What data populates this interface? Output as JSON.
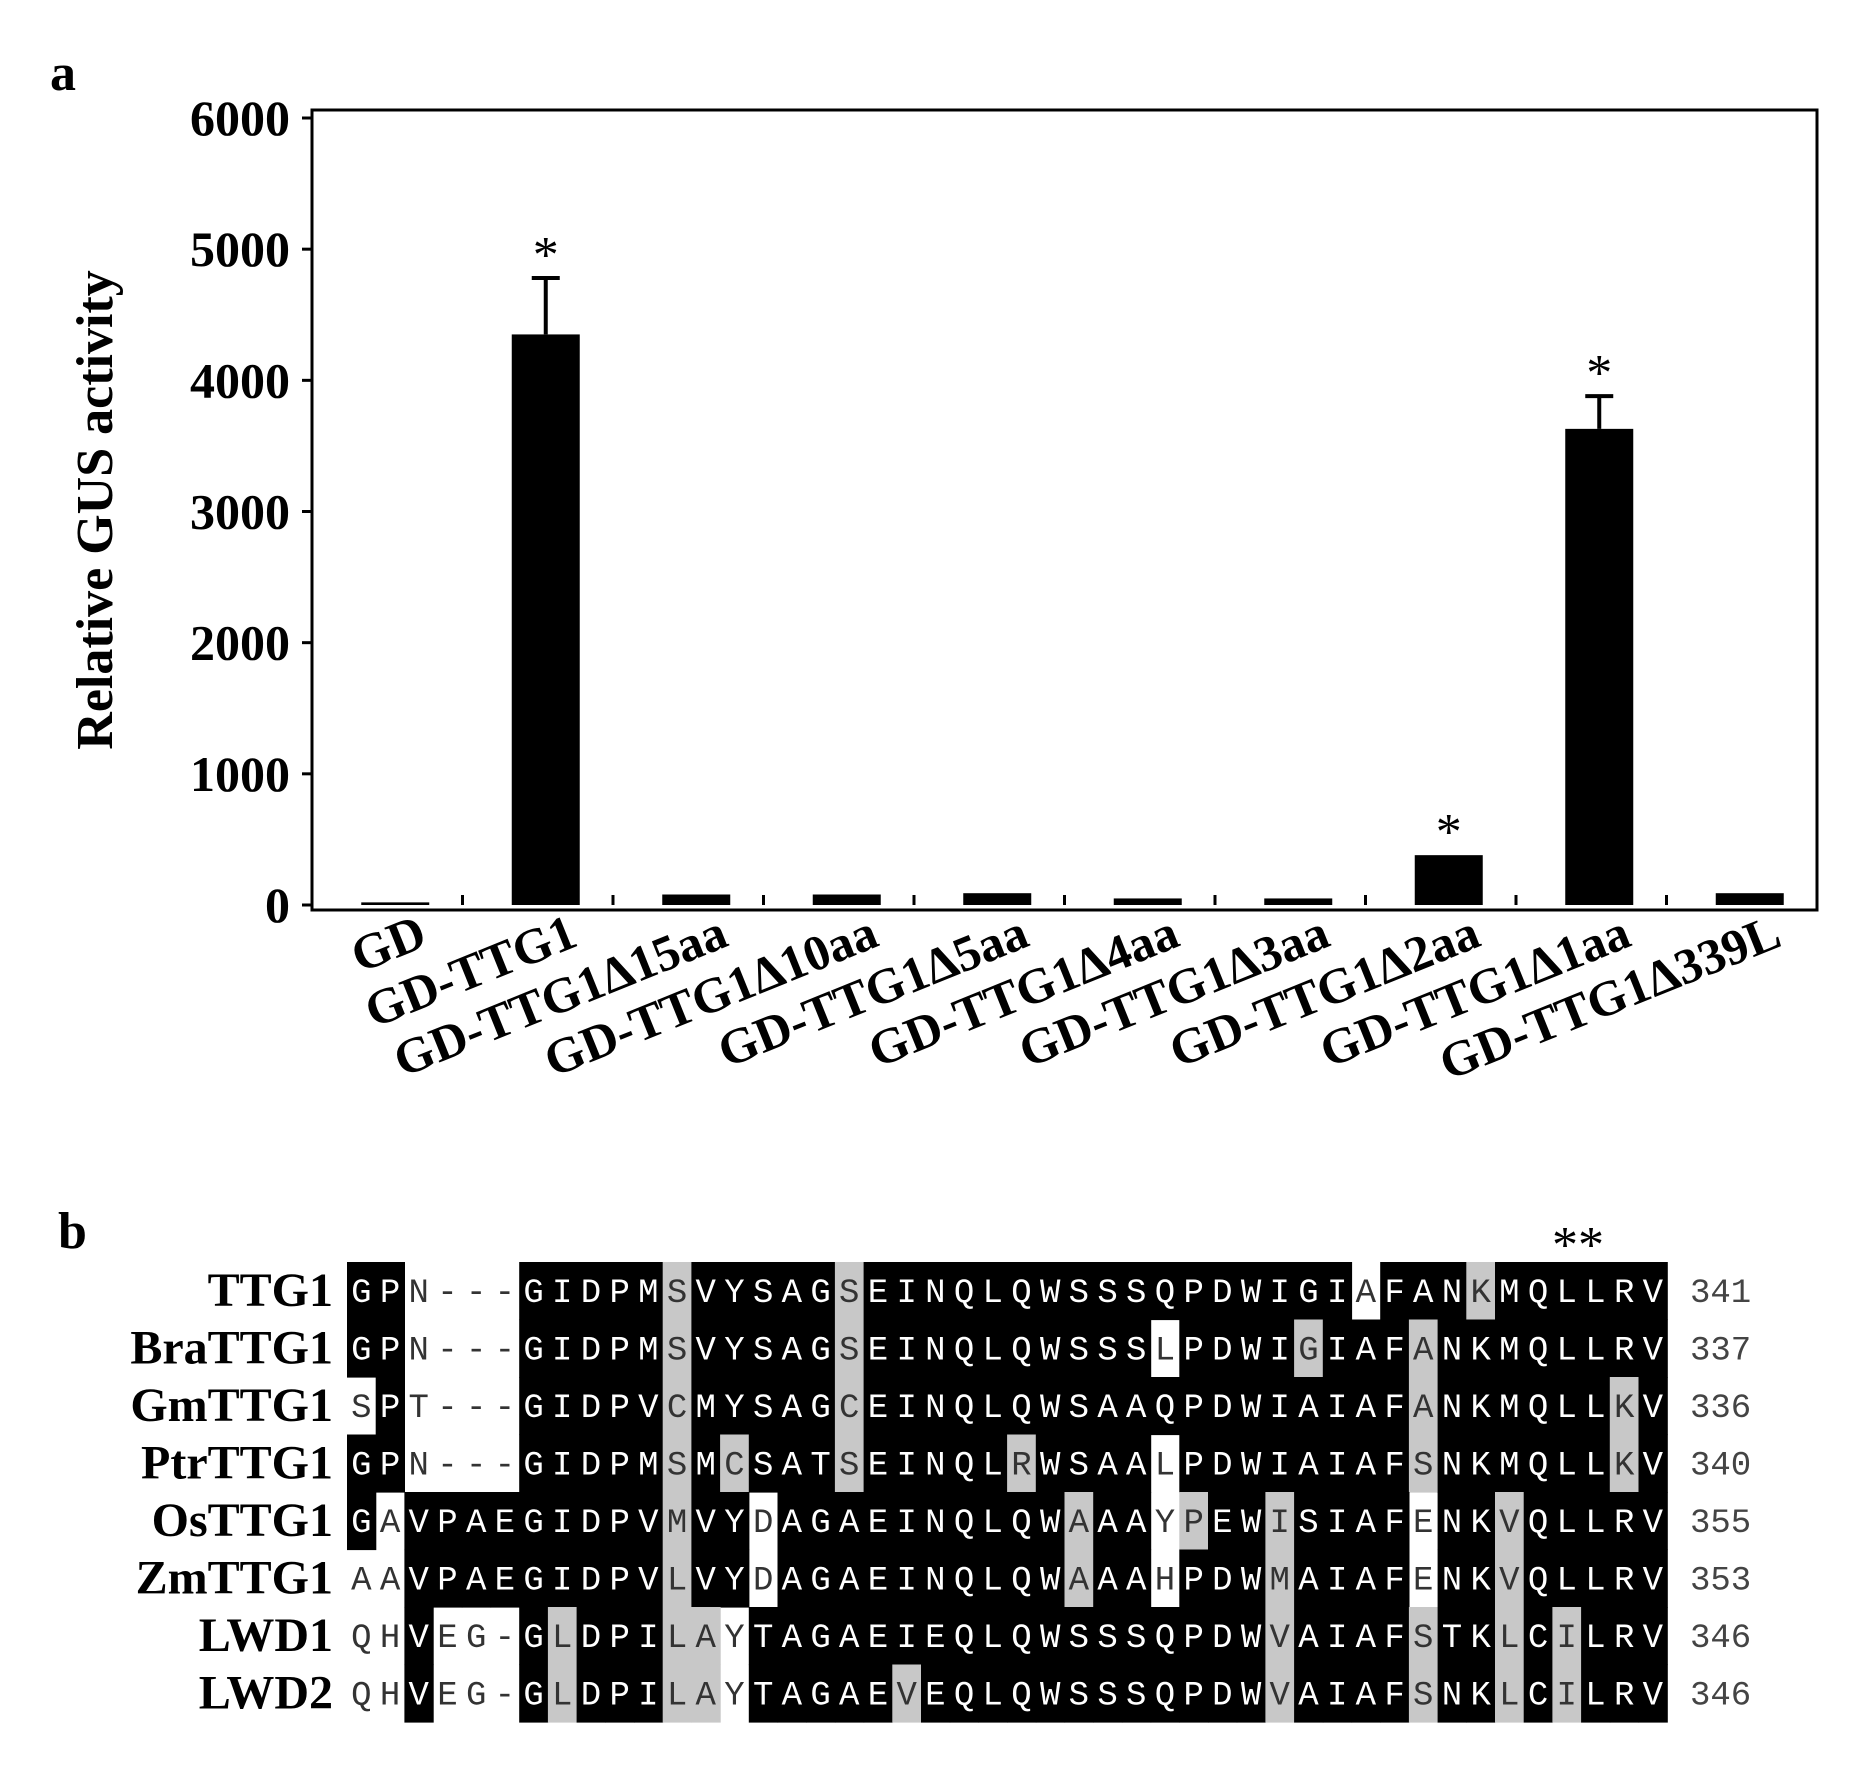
{
  "panel_a_label": "a",
  "panel_b_label": "b",
  "chart_data": {
    "type": "bar",
    "ylabel": "Relative GUS activity",
    "ylim": [
      0,
      6000
    ],
    "yticks": [
      0,
      1000,
      2000,
      3000,
      4000,
      5000,
      6000
    ],
    "categories": [
      "GD",
      "GD-TTG1",
      "GD-TTG1Δ15aa",
      "GD-TTG1Δ10aa",
      "GD-TTG1Δ5aa",
      "GD-TTG1Δ4aa",
      "GD-TTG1Δ3aa",
      "GD-TTG1Δ2aa",
      "GD-TTG1Δ1aa",
      "GD-TTG1Δ339L"
    ],
    "values": [
      20,
      4350,
      80,
      80,
      90,
      50,
      50,
      380,
      3630,
      90
    ],
    "errors": [
      0,
      430,
      0,
      0,
      0,
      0,
      0,
      0,
      250,
      0
    ],
    "significance": [
      "",
      "*",
      "",
      "",
      "",
      "",
      "",
      "*",
      "*",
      ""
    ],
    "bar_color": "#000000",
    "grid": false
  },
  "alignment": {
    "conserved_marker": "**",
    "rows": [
      {
        "name": "TTG1",
        "seq": "GPN---GIDPMSVYSAGSEINQLQWSSSQPDWIGIAFANKMQLLRV",
        "pos": "341",
        "shade": "BBWWWWBBBBBGBBBBBGBBBBBBBBBBBBBBBBBWBBBGBBBBBB"
      },
      {
        "name": "BraTTG1",
        "seq": "GPN---GIDPMSVYSAGSEINQLQWSSSLPDWIGIAFANKMQLLRV",
        "pos": "337",
        "shade": "BBWWWWBBBBBGBBBBBGBBBBBBBBBBWBBBBGBBBGBBBBBBBB"
      },
      {
        "name": "GmTTG1",
        "seq": "SPT---GIDPVCMYSAGCEINQLQWSAAQPDWIAIAFANKMQLLKV",
        "pos": "336",
        "shade": "WBWWWWBBBBBGBBBBBGBBBBBBBBBBBBBBBBBBBGBBBBBBGB"
      },
      {
        "name": "PtrTTG1",
        "seq": "GPN---GIDPMSMCSATSEINQLRWSAALPDWIAIAFSNKMQLLKV",
        "pos": "340",
        "shade": "BBWWWWBBBBBGBGBBBGBBBBBGBBBBWBBBBBBBBGBBBBBBGB"
      },
      {
        "name": "OsTTG1",
        "seq": "GAVPAEGIDPVMVYDAGAEINQLQWAAAYPEWISIAFENKVQLLRV",
        "pos": "355",
        "shade": "BWBBBBBBBBBGBBWBBBBBBBBBBGBBWGBBGBBBBWBBGBBBBB"
      },
      {
        "name": "ZmTTG1",
        "seq": "AAVPAEGIDPVLVYDAGAEINQLQWAAAHPDWMAIAFENKVQLLRV",
        "pos": "353",
        "shade": "WWBBBBBBBBBGBBWBBBBBBBBBBGBBWBBBGBBBBWBBGBBBBB"
      },
      {
        "name": "LWD1",
        "seq": "QHVEG-GLDPILAYTAGAEIEQLQWSSSQPDWVAIAFSTKLCILRV",
        "pos": "346",
        "shade": "WWBWWWBGBBBGGWBBBBBBBBBBBBBBBBBBGBBBBGBBGBGBBB"
      },
      {
        "name": "LWD2",
        "seq": "QHVEG-GLDPILAYTAGAEVEQLQWSSSQPDWVAIAFSNKLCILRV",
        "pos": "346",
        "shade": "WWBWWWBGBBBGGWBBBBBGBBBBBBBBBBBBGBBBBGBBGBGBBB"
      }
    ]
  }
}
